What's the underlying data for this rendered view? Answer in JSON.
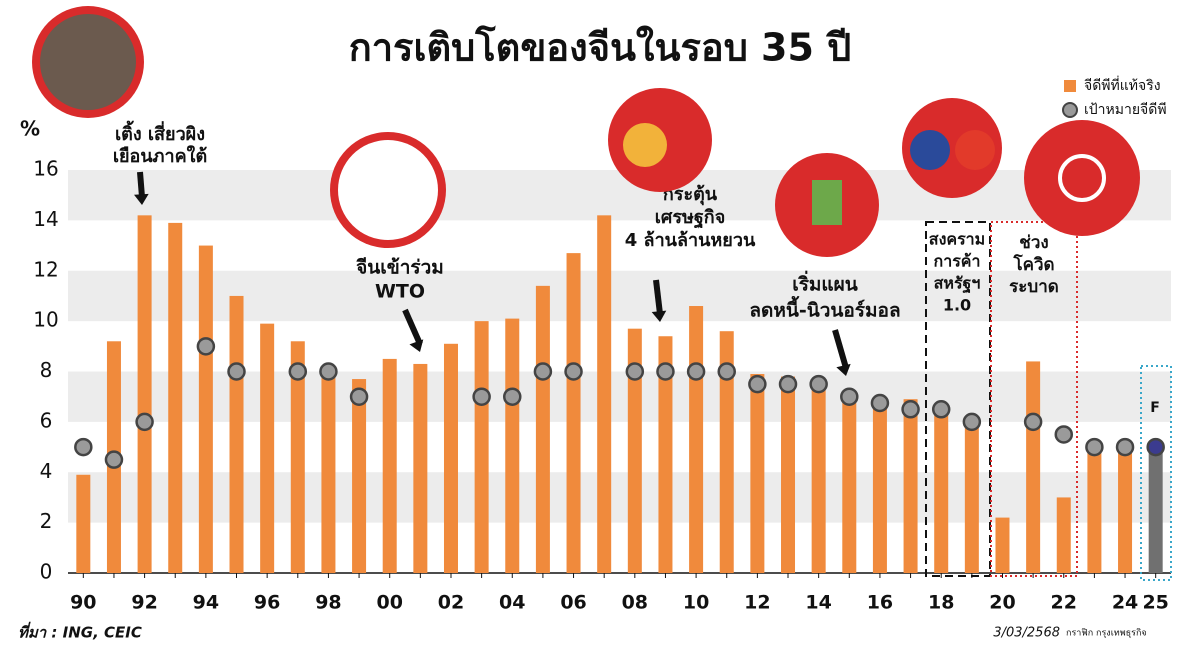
{
  "chart_data": {
    "type": "bar",
    "title": "การเติบโตของจีนในรอบ 35 ปี",
    "y_label": "%",
    "categories": [
      "90",
      null,
      "92",
      null,
      "94",
      null,
      "96",
      null,
      "98",
      null,
      "00",
      null,
      "02",
      null,
      "04",
      null,
      "06",
      null,
      "08",
      null,
      "10",
      null,
      "12",
      null,
      "14",
      null,
      "16",
      null,
      "18",
      null,
      "20",
      null,
      "22",
      null,
      "24",
      "25"
    ],
    "series": [
      {
        "name": "จีดีพีที่แท้จริง",
        "color": "#f08a3c",
        "colors": [
          "#f08a3c",
          "#f08a3c",
          "#f08a3c",
          "#f08a3c",
          "#f08a3c",
          "#f08a3c",
          "#f08a3c",
          "#f08a3c",
          "#f08a3c",
          "#f08a3c",
          "#f08a3c",
          "#f08a3c",
          "#f08a3c",
          "#f08a3c",
          "#f08a3c",
          "#f08a3c",
          "#f08a3c",
          "#f08a3c",
          "#f08a3c",
          "#f08a3c",
          "#f08a3c",
          "#f08a3c",
          "#f08a3c",
          "#f08a3c",
          "#f08a3c",
          "#f08a3c",
          "#f08a3c",
          "#f08a3c",
          "#f08a3c",
          "#f08a3c",
          "#f08a3c",
          "#f08a3c",
          "#f08a3c",
          "#f08a3c",
          "#f08a3c",
          "#707070"
        ],
        "values": [
          3.9,
          9.2,
          14.2,
          13.9,
          13.0,
          11.0,
          9.9,
          9.2,
          7.8,
          7.7,
          8.5,
          8.3,
          9.1,
          10.0,
          10.1,
          11.4,
          12.7,
          14.2,
          9.7,
          9.4,
          10.6,
          9.6,
          7.9,
          7.8,
          7.4,
          7.0,
          6.8,
          6.9,
          6.7,
          6.0,
          2.2,
          8.4,
          3.0,
          5.2,
          5.0,
          5.0
        ]
      },
      {
        "name": "เป้าหมายจีดีพี",
        "color": "#9a9a9a",
        "colors": [
          "#9a9a9a",
          "#9a9a9a",
          "#9a9a9a",
          "#9a9a9a",
          "#9a9a9a",
          "#9a9a9a",
          "#9a9a9a",
          "#9a9a9a",
          "#9a9a9a",
          "#9a9a9a",
          "#9a9a9a",
          "#9a9a9a",
          "#9a9a9a",
          "#9a9a9a",
          "#9a9a9a",
          "#9a9a9a",
          "#9a9a9a",
          "#9a9a9a",
          "#9a9a9a",
          "#9a9a9a",
          "#9a9a9a",
          "#9a9a9a",
          "#9a9a9a",
          "#9a9a9a",
          "#9a9a9a",
          "#9a9a9a",
          "#9a9a9a",
          "#9a9a9a",
          "#9a9a9a",
          "#9a9a9a",
          "#9a9a9a",
          "#9a9a9a",
          "#9a9a9a",
          "#9a9a9a",
          "#9a9a9a",
          "#3b3b8f"
        ],
        "values": [
          5,
          4.5,
          6,
          null,
          9,
          8,
          null,
          8,
          8,
          7,
          null,
          null,
          null,
          7,
          7,
          8,
          8,
          null,
          8,
          8,
          8,
          8,
          7.5,
          7.5,
          7.5,
          7,
          6.75,
          6.5,
          6.5,
          6,
          null,
          6,
          5.5,
          5,
          5,
          5
        ]
      }
    ],
    "ylim": [
      0,
      16
    ],
    "yticks": [
      0,
      2,
      4,
      6,
      8,
      10,
      12,
      14,
      16
    ],
    "grid": true,
    "legend": "top-right",
    "annotations": [
      {
        "lines": [
          "เติ้ง เสี่ยวผิง",
          "เยือนภาคใต้"
        ]
      },
      {
        "lines": [
          "จีนเข้าร่วม",
          "WTO"
        ]
      },
      {
        "lines": [
          "กระตุ้น",
          "เศรษฐกิจ",
          "4 ล้านล้านหยวน"
        ]
      },
      {
        "lines": [
          "เริ่มแผน",
          "ลดหนี้-นิวนอร์มอล"
        ]
      },
      {
        "lines": [
          "สงคราม",
          "การค้า",
          "สหรัฐฯ",
          "1.0"
        ]
      },
      {
        "lines": [
          "ช่วง",
          "โควิด",
          "ระบาด"
        ]
      },
      {
        "lines": [
          "F"
        ]
      }
    ],
    "source": "ที่มา : ING, CEIC",
    "date": "3/03/2568",
    "credit": "กราฟิก กรุงเทพธุรกิจ"
  }
}
